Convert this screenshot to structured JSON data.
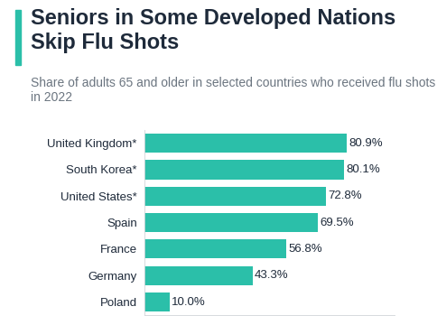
{
  "chart_data": {
    "type": "bar",
    "orientation": "horizontal",
    "title": "Seniors in Some Developed Nations Skip Flu Shots",
    "subtitle": "Share of adults 65 and older in selected countries who received flu shots in 2022",
    "categories": [
      "United Kingdom*",
      "South Korea*",
      "United States*",
      "Spain",
      "France",
      "Germany",
      "Poland"
    ],
    "values": [
      80.9,
      80.1,
      72.8,
      69.5,
      56.8,
      43.3,
      10.0
    ],
    "value_labels": [
      "80.9%",
      "80.1%",
      "72.8%",
      "69.5%",
      "56.8%",
      "43.3%",
      "10.0%"
    ],
    "data_labels": true,
    "color": "#2bbfa9",
    "xlim": [
      0,
      100
    ],
    "grid": false,
    "tick_labels": "y"
  }
}
